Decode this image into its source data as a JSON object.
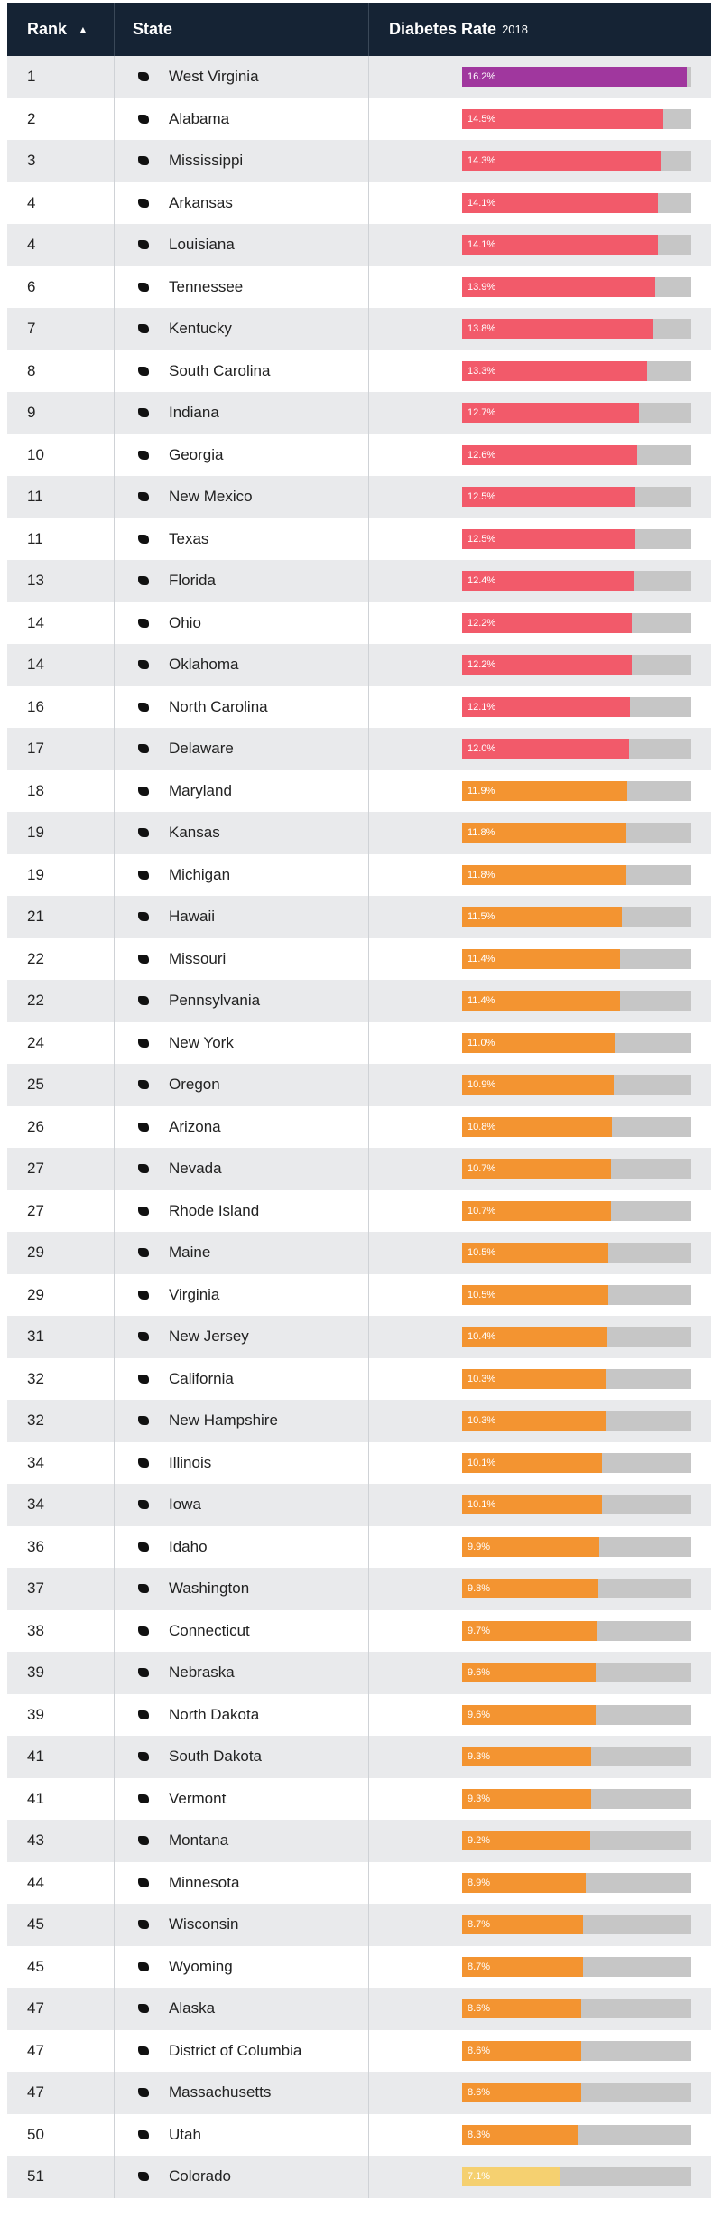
{
  "header": {
    "rank_label": "Rank",
    "sort_icon": "sort-ascending-icon",
    "state_label": "State",
    "rate_label": "Diabetes Rate",
    "rate_year": "2018"
  },
  "colors": {
    "top": "#a0379e",
    "high": "#f25a6a",
    "mid": "#f39431",
    "low": "#f5d070",
    "track": "#c6c6c6",
    "header_bg": "#152334"
  },
  "chart_data": {
    "type": "bar",
    "title": "",
    "xlabel": "",
    "ylabel": "Diabetes Rate 2018",
    "ylim": [
      0,
      18
    ],
    "categories": [
      "West Virginia",
      "Alabama",
      "Mississippi",
      "Arkansas",
      "Louisiana",
      "Tennessee",
      "Kentucky",
      "South Carolina",
      "Indiana",
      "Georgia",
      "New Mexico",
      "Texas",
      "Florida",
      "Ohio",
      "Oklahoma",
      "North Carolina",
      "Delaware",
      "Maryland",
      "Kansas",
      "Michigan",
      "Hawaii",
      "Missouri",
      "Pennsylvania",
      "New York",
      "Oregon",
      "Arizona",
      "Nevada",
      "Rhode Island",
      "Maine",
      "Virginia",
      "New Jersey",
      "California",
      "New Hampshire",
      "Illinois",
      "Iowa",
      "Idaho",
      "Washington",
      "Connecticut",
      "Nebraska",
      "North Dakota",
      "South Dakota",
      "Vermont",
      "Montana",
      "Minnesota",
      "Wisconsin",
      "Wyoming",
      "Alaska",
      "District of Columbia",
      "Massachusetts",
      "Utah",
      "Colorado"
    ],
    "values": [
      16.2,
      14.5,
      14.3,
      14.1,
      14.1,
      13.9,
      13.8,
      13.3,
      12.7,
      12.6,
      12.5,
      12.5,
      12.4,
      12.2,
      12.2,
      12.1,
      12.0,
      11.9,
      11.8,
      11.8,
      11.5,
      11.4,
      11.4,
      11.0,
      10.9,
      10.8,
      10.7,
      10.7,
      10.5,
      10.5,
      10.4,
      10.3,
      10.3,
      10.1,
      10.1,
      9.9,
      9.8,
      9.7,
      9.6,
      9.6,
      9.3,
      9.3,
      9.2,
      8.9,
      8.7,
      8.7,
      8.6,
      8.6,
      8.6,
      8.3,
      7.1
    ]
  },
  "rows": [
    {
      "rank": "1",
      "state": "West Virginia",
      "rate": 16.2,
      "label": "16.2%",
      "tier": "top"
    },
    {
      "rank": "2",
      "state": "Alabama",
      "rate": 14.5,
      "label": "14.5%",
      "tier": "high"
    },
    {
      "rank": "3",
      "state": "Mississippi",
      "rate": 14.3,
      "label": "14.3%",
      "tier": "high"
    },
    {
      "rank": "4",
      "state": "Arkansas",
      "rate": 14.1,
      "label": "14.1%",
      "tier": "high"
    },
    {
      "rank": "4",
      "state": "Louisiana",
      "rate": 14.1,
      "label": "14.1%",
      "tier": "high"
    },
    {
      "rank": "6",
      "state": "Tennessee",
      "rate": 13.9,
      "label": "13.9%",
      "tier": "high"
    },
    {
      "rank": "7",
      "state": "Kentucky",
      "rate": 13.8,
      "label": "13.8%",
      "tier": "high"
    },
    {
      "rank": "8",
      "state": "South Carolina",
      "rate": 13.3,
      "label": "13.3%",
      "tier": "high"
    },
    {
      "rank": "9",
      "state": "Indiana",
      "rate": 12.7,
      "label": "12.7%",
      "tier": "high"
    },
    {
      "rank": "10",
      "state": "Georgia",
      "rate": 12.6,
      "label": "12.6%",
      "tier": "high"
    },
    {
      "rank": "11",
      "state": "New Mexico",
      "rate": 12.5,
      "label": "12.5%",
      "tier": "high"
    },
    {
      "rank": "11",
      "state": "Texas",
      "rate": 12.5,
      "label": "12.5%",
      "tier": "high"
    },
    {
      "rank": "13",
      "state": "Florida",
      "rate": 12.4,
      "label": "12.4%",
      "tier": "high"
    },
    {
      "rank": "14",
      "state": "Ohio",
      "rate": 12.2,
      "label": "12.2%",
      "tier": "high"
    },
    {
      "rank": "14",
      "state": "Oklahoma",
      "rate": 12.2,
      "label": "12.2%",
      "tier": "high"
    },
    {
      "rank": "16",
      "state": "North Carolina",
      "rate": 12.1,
      "label": "12.1%",
      "tier": "high"
    },
    {
      "rank": "17",
      "state": "Delaware",
      "rate": 12.0,
      "label": "12.0%",
      "tier": "high"
    },
    {
      "rank": "18",
      "state": "Maryland",
      "rate": 11.9,
      "label": "11.9%",
      "tier": "mid"
    },
    {
      "rank": "19",
      "state": "Kansas",
      "rate": 11.8,
      "label": "11.8%",
      "tier": "mid"
    },
    {
      "rank": "19",
      "state": "Michigan",
      "rate": 11.8,
      "label": "11.8%",
      "tier": "mid"
    },
    {
      "rank": "21",
      "state": "Hawaii",
      "rate": 11.5,
      "label": "11.5%",
      "tier": "mid"
    },
    {
      "rank": "22",
      "state": "Missouri",
      "rate": 11.4,
      "label": "11.4%",
      "tier": "mid"
    },
    {
      "rank": "22",
      "state": "Pennsylvania",
      "rate": 11.4,
      "label": "11.4%",
      "tier": "mid"
    },
    {
      "rank": "24",
      "state": "New York",
      "rate": 11.0,
      "label": "11.0%",
      "tier": "mid"
    },
    {
      "rank": "25",
      "state": "Oregon",
      "rate": 10.9,
      "label": "10.9%",
      "tier": "mid"
    },
    {
      "rank": "26",
      "state": "Arizona",
      "rate": 10.8,
      "label": "10.8%",
      "tier": "mid"
    },
    {
      "rank": "27",
      "state": "Nevada",
      "rate": 10.7,
      "label": "10.7%",
      "tier": "mid"
    },
    {
      "rank": "27",
      "state": "Rhode Island",
      "rate": 10.7,
      "label": "10.7%",
      "tier": "mid"
    },
    {
      "rank": "29",
      "state": "Maine",
      "rate": 10.5,
      "label": "10.5%",
      "tier": "mid"
    },
    {
      "rank": "29",
      "state": "Virginia",
      "rate": 10.5,
      "label": "10.5%",
      "tier": "mid"
    },
    {
      "rank": "31",
      "state": "New Jersey",
      "rate": 10.4,
      "label": "10.4%",
      "tier": "mid"
    },
    {
      "rank": "32",
      "state": "California",
      "rate": 10.3,
      "label": "10.3%",
      "tier": "mid"
    },
    {
      "rank": "32",
      "state": "New Hampshire",
      "rate": 10.3,
      "label": "10.3%",
      "tier": "mid"
    },
    {
      "rank": "34",
      "state": "Illinois",
      "rate": 10.1,
      "label": "10.1%",
      "tier": "mid"
    },
    {
      "rank": "34",
      "state": "Iowa",
      "rate": 10.1,
      "label": "10.1%",
      "tier": "mid"
    },
    {
      "rank": "36",
      "state": "Idaho",
      "rate": 9.9,
      "label": "9.9%",
      "tier": "mid"
    },
    {
      "rank": "37",
      "state": "Washington",
      "rate": 9.8,
      "label": "9.8%",
      "tier": "mid"
    },
    {
      "rank": "38",
      "state": "Connecticut",
      "rate": 9.7,
      "label": "9.7%",
      "tier": "mid"
    },
    {
      "rank": "39",
      "state": "Nebraska",
      "rate": 9.6,
      "label": "9.6%",
      "tier": "mid"
    },
    {
      "rank": "39",
      "state": "North Dakota",
      "rate": 9.6,
      "label": "9.6%",
      "tier": "mid"
    },
    {
      "rank": "41",
      "state": "South Dakota",
      "rate": 9.3,
      "label": "9.3%",
      "tier": "mid"
    },
    {
      "rank": "41",
      "state": "Vermont",
      "rate": 9.3,
      "label": "9.3%",
      "tier": "mid"
    },
    {
      "rank": "43",
      "state": "Montana",
      "rate": 9.2,
      "label": "9.2%",
      "tier": "mid"
    },
    {
      "rank": "44",
      "state": "Minnesota",
      "rate": 8.9,
      "label": "8.9%",
      "tier": "mid"
    },
    {
      "rank": "45",
      "state": "Wisconsin",
      "rate": 8.7,
      "label": "8.7%",
      "tier": "mid"
    },
    {
      "rank": "45",
      "state": "Wyoming",
      "rate": 8.7,
      "label": "8.7%",
      "tier": "mid"
    },
    {
      "rank": "47",
      "state": "Alaska",
      "rate": 8.6,
      "label": "8.6%",
      "tier": "mid"
    },
    {
      "rank": "47",
      "state": "District of Columbia",
      "rate": 8.6,
      "label": "8.6%",
      "tier": "mid"
    },
    {
      "rank": "47",
      "state": "Massachusetts",
      "rate": 8.6,
      "label": "8.6%",
      "tier": "mid"
    },
    {
      "rank": "50",
      "state": "Utah",
      "rate": 8.3,
      "label": "8.3%",
      "tier": "mid"
    },
    {
      "rank": "51",
      "state": "Colorado",
      "rate": 7.1,
      "label": "7.1%",
      "tier": "low"
    }
  ]
}
